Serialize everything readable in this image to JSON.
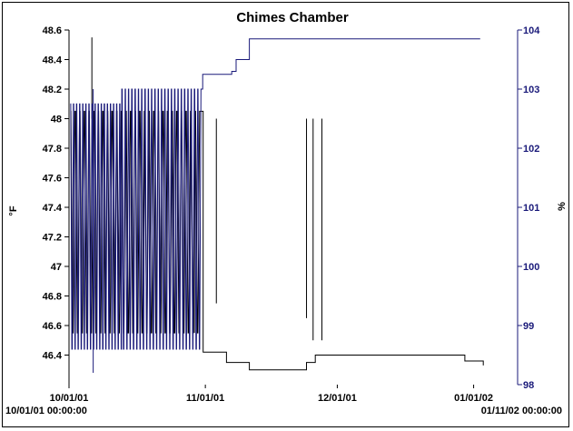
{
  "chart_data": {
    "type": "line",
    "title": "Chimes Chamber",
    "ylabel_left": "°F",
    "ylabel_right": "%",
    "x_start_label": "10/01/01 00:00:00",
    "x_end_label": "01/11/02 00:00:00",
    "x_ticks": [
      {
        "label": "10/01/01",
        "day": 0
      },
      {
        "label": "11/01/01",
        "day": 31
      },
      {
        "label": "12/01/01",
        "day": 61
      },
      {
        "label": "01/01/02",
        "day": 92
      }
    ],
    "x_range_days": [
      0,
      102
    ],
    "y_left": {
      "ylim": [
        46.2,
        48.6
      ],
      "ticks": [
        {
          "label": "46.4",
          "value": 46.4
        },
        {
          "label": "46.6",
          "value": 46.6
        },
        {
          "label": "46.8",
          "value": 46.8
        },
        {
          "label": "47",
          "value": 47.0
        },
        {
          "label": "47.2",
          "value": 47.2
        },
        {
          "label": "47.4",
          "value": 47.4
        },
        {
          "label": "47.6",
          "value": 47.6
        },
        {
          "label": "47.8",
          "value": 47.8
        },
        {
          "label": "48",
          "value": 48.0
        },
        {
          "label": "48.2",
          "value": 48.2
        },
        {
          "label": "48.4",
          "value": 48.4
        },
        {
          "label": "48.6",
          "value": 48.6
        }
      ]
    },
    "y_right": {
      "ylim": [
        98,
        104
      ],
      "ticks": [
        {
          "label": "98",
          "value": 98
        },
        {
          "label": "99",
          "value": 99
        },
        {
          "label": "100",
          "value": 100
        },
        {
          "label": "101",
          "value": 101
        },
        {
          "label": "102",
          "value": 102
        },
        {
          "label": "103",
          "value": 103
        },
        {
          "label": "104",
          "value": 104
        }
      ]
    },
    "series": [
      {
        "axis": "left",
        "color": "#000000",
        "segments": [
          {
            "x_from": 0.3,
            "x_to": 30.2,
            "cycle_days": 1.05,
            "low": 46.55,
            "high": 48.05
          },
          {
            "day": 30.5,
            "value": 46.42
          },
          {
            "day": 35.0,
            "value": 46.42
          },
          {
            "day": 35.8,
            "value": 46.35
          },
          {
            "day": 40.0,
            "value": 46.35
          },
          {
            "day": 41.0,
            "value": 46.3
          },
          {
            "day": 52.0,
            "value": 46.3
          },
          {
            "day": 54.0,
            "value": 46.35
          },
          {
            "day": 56.0,
            "value": 46.4
          },
          {
            "day": 90.0,
            "value": 46.36
          },
          {
            "day": 94.2,
            "value": 46.33
          }
        ],
        "spikes": [
          {
            "day": 5.2,
            "value": 48.55
          },
          {
            "day": 28.5,
            "value": 46.55
          },
          {
            "day": 33.5,
            "value": 46.75
          },
          {
            "day": 54.0,
            "value": 46.65
          },
          {
            "day": 55.5,
            "value": 46.5
          },
          {
            "day": 57.5,
            "value": 46.5
          }
        ]
      },
      {
        "axis": "right",
        "color": "#1a1a7a",
        "segments": [
          {
            "x_from": 0.3,
            "x_to": 12.0,
            "cycle_days": 0.7,
            "low": 98.6,
            "high": 102.75
          },
          {
            "x_from": 12.0,
            "x_to": 30.2,
            "cycle_days": 0.75,
            "low": 98.6,
            "high": 103.0
          },
          {
            "day": 30.4,
            "value": 103.25
          },
          {
            "day": 37.0,
            "value": 103.3
          },
          {
            "day": 38.0,
            "value": 103.5
          },
          {
            "day": 41.0,
            "value": 103.85
          },
          {
            "day": 93.5,
            "value": 103.85
          }
        ],
        "spikes": [
          {
            "day": 5.5,
            "value": 98.2
          }
        ]
      }
    ]
  }
}
